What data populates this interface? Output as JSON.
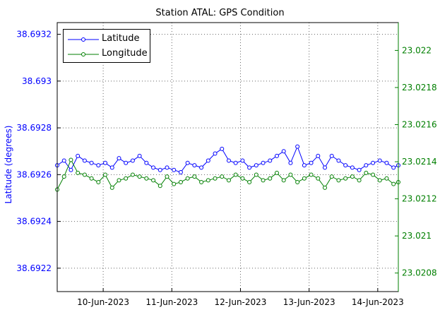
{
  "chart_data": {
    "type": "line",
    "title": "Station ATAL: GPS Condition",
    "ylabel_left": "Latitude (degrees)",
    "ylabel_right": "",
    "x_ticks": [
      "10-Jun-2023",
      "11-Jun-2023",
      "12-Jun-2023",
      "13-Jun-2023",
      "14-Jun-2023"
    ],
    "x_tick_days": [
      10,
      11,
      12,
      13,
      14
    ],
    "xlim_days": [
      9.33,
      14.3
    ],
    "ylim_left": [
      38.6921,
      38.69325
    ],
    "ylim_right": [
      23.0207,
      23.02215
    ],
    "y_ticks_left": [
      "38.6922",
      "38.6924",
      "38.6926",
      "38.6928",
      "38.693",
      "38.6932"
    ],
    "y_ticks_right": [
      "23.0208",
      "23.021",
      "23.0212",
      "23.0214",
      "23.0216",
      "23.0218",
      "23.022"
    ],
    "grid": true,
    "legend_position": "top-left",
    "series": [
      {
        "name": "Latitude",
        "axis": "left",
        "color": "#0000ff",
        "x": [
          9.33,
          9.43,
          9.53,
          9.63,
          9.73,
          9.83,
          9.93,
          10.03,
          10.13,
          10.23,
          10.33,
          10.43,
          10.53,
          10.63,
          10.73,
          10.83,
          10.93,
          11.03,
          11.13,
          11.23,
          11.33,
          11.43,
          11.53,
          11.63,
          11.73,
          11.83,
          11.93,
          12.03,
          12.13,
          12.23,
          12.33,
          12.43,
          12.53,
          12.63,
          12.73,
          12.83,
          12.93,
          13.03,
          13.13,
          13.23,
          13.33,
          13.43,
          13.53,
          13.63,
          13.73,
          13.83,
          13.93,
          14.03,
          14.13,
          14.23,
          14.3
        ],
        "y": [
          38.69264,
          38.69266,
          38.69262,
          38.69268,
          38.69266,
          38.69265,
          38.69264,
          38.69265,
          38.69263,
          38.69267,
          38.69265,
          38.69266,
          38.69268,
          38.69265,
          38.69263,
          38.69262,
          38.69263,
          38.69262,
          38.69261,
          38.69265,
          38.69264,
          38.69263,
          38.69266,
          38.69269,
          38.69271,
          38.69266,
          38.69265,
          38.69266,
          38.69263,
          38.69264,
          38.69265,
          38.69266,
          38.69268,
          38.6927,
          38.69265,
          38.69272,
          38.69264,
          38.69265,
          38.69268,
          38.69263,
          38.69268,
          38.69266,
          38.69264,
          38.69263,
          38.69262,
          38.69264,
          38.69265,
          38.69266,
          38.69265,
          38.69263,
          38.69264
        ]
      },
      {
        "name": "Longitude",
        "axis": "right",
        "color": "#007f00",
        "x": [
          9.33,
          9.43,
          9.53,
          9.63,
          9.73,
          9.83,
          9.93,
          10.03,
          10.13,
          10.23,
          10.33,
          10.43,
          10.53,
          10.63,
          10.73,
          10.83,
          10.93,
          11.03,
          11.13,
          11.23,
          11.33,
          11.43,
          11.53,
          11.63,
          11.73,
          11.83,
          11.93,
          12.03,
          12.13,
          12.23,
          12.33,
          12.43,
          12.53,
          12.63,
          12.73,
          12.83,
          12.93,
          13.03,
          13.13,
          13.23,
          13.33,
          13.43,
          13.53,
          13.63,
          13.73,
          13.83,
          13.93,
          14.03,
          14.13,
          14.23,
          14.3
        ],
        "y": [
          23.02125,
          23.02132,
          23.02141,
          23.02134,
          23.02133,
          23.02131,
          23.02129,
          23.02133,
          23.02126,
          23.0213,
          23.02131,
          23.02133,
          23.02132,
          23.02131,
          23.0213,
          23.02127,
          23.02132,
          23.02128,
          23.02129,
          23.02131,
          23.02132,
          23.02129,
          23.0213,
          23.02131,
          23.02132,
          23.0213,
          23.02133,
          23.02131,
          23.02129,
          23.02133,
          23.0213,
          23.02131,
          23.02134,
          23.0213,
          23.02133,
          23.02129,
          23.02131,
          23.02133,
          23.02131,
          23.02126,
          23.02132,
          23.0213,
          23.02131,
          23.02132,
          23.0213,
          23.02134,
          23.02133,
          23.0213,
          23.02131,
          23.02128,
          23.02129
        ]
      }
    ]
  }
}
